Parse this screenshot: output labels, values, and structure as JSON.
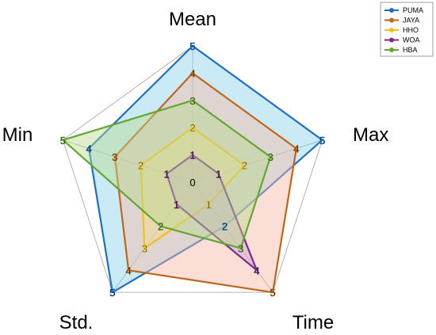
{
  "chart_data": {
    "type": "radar",
    "axes": [
      "Mean",
      "Max",
      "Time",
      "Std.",
      "Min"
    ],
    "scale": {
      "min": 0,
      "max": 5,
      "ticks": [
        0,
        1,
        2,
        3,
        4,
        5
      ]
    },
    "legend_position": "top-right",
    "series": [
      {
        "name": "PUMA",
        "color": "#1f6fc5",
        "fill": "#8ad3ec",
        "values": [
          5,
          5,
          2,
          5,
          4
        ]
      },
      {
        "name": "JAYA",
        "color": "#c0661a",
        "fill": "#f7b7a4",
        "values": [
          4,
          4,
          5,
          4,
          3
        ]
      },
      {
        "name": "HHO",
        "color": "#f2bf1b",
        "fill": "#f7e08a",
        "values": [
          2,
          2,
          1,
          3,
          2
        ]
      },
      {
        "name": "WOA",
        "color": "#7a2b8e",
        "fill": "#c9a3d4",
        "values": [
          1,
          1,
          4,
          1,
          1
        ]
      },
      {
        "name": "HBA",
        "color": "#66a533",
        "fill": "#b8d98d",
        "values": [
          3,
          3,
          3,
          2,
          5
        ]
      }
    ]
  }
}
